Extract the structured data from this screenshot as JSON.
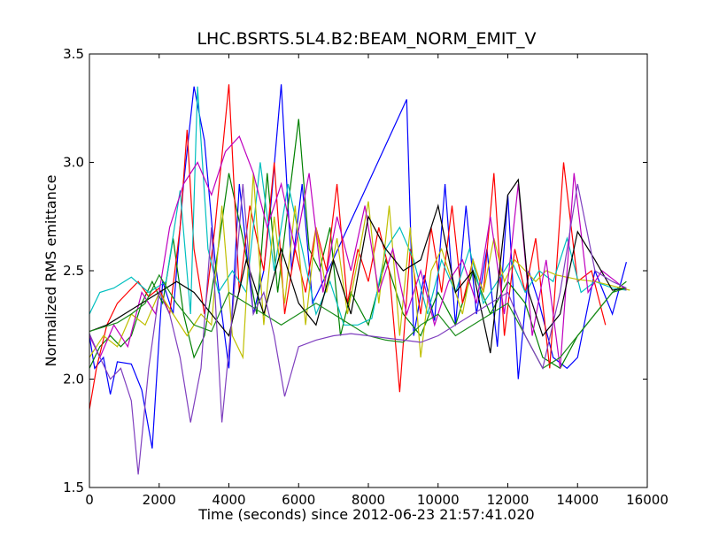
{
  "chart_data": {
    "type": "line",
    "title": "LHC.BSRTS.5L4.B2:BEAM_NORM_EMIT_V",
    "xlabel": "Time (seconds) since 2012-06-23 21:57:41.020",
    "ylabel": "Normalized RMS emittance",
    "xlim": [
      0,
      16000
    ],
    "ylim": [
      1.5,
      3.5
    ],
    "xticks": [
      0,
      2000,
      4000,
      6000,
      8000,
      10000,
      12000,
      14000,
      16000
    ],
    "yticks": [
      1.5,
      2.0,
      2.5,
      3.0,
      3.5
    ],
    "xtick_labels": [
      "0",
      "2000",
      "4000",
      "6000",
      "8000",
      "10000",
      "12000",
      "14000",
      "16000"
    ],
    "ytick_labels": [
      "1.5",
      "2.0",
      "2.5",
      "3.0",
      "3.5"
    ],
    "grid": false,
    "legend": "none",
    "series": [
      {
        "color": "#0000ff",
        "x": [
          0,
          150,
          400,
          600,
          800,
          1200,
          1500,
          1800,
          2100,
          2400,
          2700,
          3000,
          3300,
          3600,
          4000,
          4300,
          4700,
          5000,
          5200,
          5500,
          5800,
          6100,
          6400,
          6700,
          9100,
          9300,
          9600,
          9900,
          10200,
          10500,
          10800,
          11100,
          11400,
          11700,
          12000,
          12300,
          12600,
          12900,
          13300,
          13700,
          14000,
          14500,
          15000,
          15400
        ],
        "y": [
          2.2,
          2.05,
          2.1,
          1.93,
          2.08,
          2.07,
          1.95,
          1.68,
          2.45,
          2.3,
          2.9,
          3.35,
          3.1,
          2.55,
          2.05,
          2.9,
          2.3,
          2.5,
          2.8,
          3.36,
          2.5,
          2.9,
          2.35,
          2.45,
          3.29,
          2.2,
          2.48,
          2.27,
          2.9,
          2.25,
          2.8,
          2.3,
          2.6,
          2.15,
          2.85,
          2.0,
          2.5,
          2.35,
          2.1,
          2.05,
          2.1,
          2.5,
          2.3,
          2.54
        ]
      },
      {
        "color": "#008000",
        "x": [
          0,
          300,
          600,
          900,
          1200,
          1500,
          1800,
          2100,
          2400,
          2700,
          3000,
          3300,
          3600,
          4000,
          4400,
          4800,
          5100,
          5400,
          5700,
          6000,
          6300,
          6600,
          6900,
          7200,
          7500,
          8000,
          8500,
          9000,
          9500,
          10000,
          10500,
          11000,
          11500,
          12000,
          12500,
          13000,
          13500,
          14000,
          14500,
          15000,
          15400
        ],
        "y": [
          2.05,
          2.15,
          2.2,
          2.15,
          2.2,
          2.35,
          2.45,
          2.35,
          2.65,
          2.3,
          2.1,
          2.2,
          2.5,
          2.95,
          2.65,
          2.3,
          2.95,
          2.4,
          2.8,
          3.2,
          2.6,
          2.5,
          2.7,
          2.2,
          2.4,
          2.25,
          2.55,
          2.3,
          2.2,
          2.4,
          2.25,
          2.5,
          2.3,
          2.45,
          2.35,
          2.1,
          2.05,
          2.2,
          2.3,
          2.4,
          2.45
        ]
      },
      {
        "color": "#ff0000",
        "x": [
          0,
          200,
          500,
          800,
          1100,
          1400,
          1700,
          2000,
          2300,
          2600,
          2800,
          3000,
          3300,
          3600,
          4000,
          4300,
          4600,
          5000,
          5300,
          5600,
          5900,
          6200,
          6500,
          6800,
          7100,
          7400,
          7700,
          8000,
          8300,
          8600,
          8900,
          9200,
          9500,
          9800,
          10100,
          10400,
          10700,
          11000,
          11300,
          11600,
          11900,
          12200,
          12500,
          12800,
          13200,
          13600,
          14000,
          14400,
          14800
        ],
        "y": [
          1.86,
          2.05,
          2.25,
          2.35,
          2.4,
          2.45,
          2.38,
          2.42,
          2.3,
          2.7,
          3.15,
          2.6,
          2.3,
          2.7,
          3.36,
          2.4,
          2.8,
          2.5,
          3.0,
          2.3,
          2.6,
          2.4,
          2.7,
          2.5,
          2.9,
          2.35,
          2.6,
          2.45,
          2.7,
          2.5,
          1.94,
          2.6,
          2.3,
          2.7,
          2.4,
          2.8,
          2.35,
          2.55,
          2.4,
          2.95,
          2.2,
          2.6,
          2.4,
          2.65,
          2.05,
          3.0,
          2.45,
          2.5,
          2.25
        ]
      },
      {
        "color": "#00bfbf",
        "x": [
          0,
          300,
          700,
          1200,
          1700,
          2200,
          2600,
          2900,
          3100,
          3400,
          3700,
          4100,
          4500,
          4900,
          5300,
          5700,
          6100,
          6500,
          6900,
          7300,
          7700,
          8100,
          8500,
          8900,
          9300,
          9700,
          10100,
          10500,
          10900,
          11300,
          11700,
          12100,
          12500,
          12900,
          13300,
          13700,
          14100,
          14500,
          15000,
          15400
        ],
        "y": [
          2.3,
          2.4,
          2.42,
          2.47,
          2.4,
          2.45,
          2.87,
          2.3,
          3.35,
          2.6,
          2.4,
          2.5,
          2.4,
          3.0,
          2.5,
          2.9,
          2.6,
          2.3,
          2.45,
          2.25,
          2.25,
          2.28,
          2.6,
          2.7,
          2.55,
          2.3,
          2.55,
          2.4,
          2.6,
          2.35,
          2.45,
          2.55,
          2.4,
          2.5,
          2.45,
          2.65,
          2.4,
          2.45,
          2.42,
          2.41
        ]
      },
      {
        "color": "#bfbf00",
        "x": [
          0,
          400,
          800,
          1200,
          1600,
          2000,
          2400,
          2800,
          3200,
          3500,
          3800,
          4100,
          4400,
          4700,
          5000,
          5300,
          5600,
          5900,
          6200,
          6500,
          6800,
          7100,
          7400,
          7700,
          8000,
          8300,
          8600,
          8900,
          9200,
          9500,
          9800,
          10100,
          10400,
          10700,
          11000,
          11300,
          11600,
          11900,
          12200,
          12500,
          12800,
          13100,
          13400,
          13700,
          14000,
          14500,
          15000,
          15500
        ],
        "y": [
          2.1,
          2.2,
          2.15,
          2.3,
          2.25,
          2.4,
          2.3,
          2.2,
          2.3,
          2.25,
          2.8,
          2.2,
          2.1,
          2.95,
          2.25,
          2.75,
          2.35,
          2.8,
          2.25,
          2.7,
          2.4,
          2.65,
          2.3,
          2.55,
          2.82,
          2.35,
          2.8,
          2.2,
          2.7,
          2.1,
          2.5,
          2.6,
          2.45,
          2.3,
          2.55,
          2.4,
          2.65,
          2.45,
          2.55,
          2.5,
          2.45,
          2.5,
          2.48,
          2.47,
          2.46,
          2.45,
          2.43,
          2.41
        ]
      },
      {
        "color": "#bf00bf",
        "x": [
          0,
          300,
          700,
          1100,
          1500,
          1900,
          2300,
          2700,
          3100,
          3500,
          3900,
          4300,
          4700,
          5100,
          5500,
          5900,
          6300,
          6700,
          7100,
          7500,
          7900,
          8300,
          8700,
          9100,
          9500,
          9900,
          10300,
          10700,
          11100,
          11500,
          11900,
          12300,
          12700,
          13100,
          13500,
          13900,
          14300,
          14700,
          15100,
          15400
        ],
        "y": [
          2.2,
          2.1,
          2.25,
          2.15,
          2.4,
          2.3,
          2.7,
          2.9,
          3.0,
          2.85,
          3.05,
          3.12,
          2.95,
          2.7,
          2.9,
          2.6,
          2.95,
          2.4,
          2.75,
          2.5,
          2.8,
          2.4,
          2.6,
          2.3,
          2.5,
          2.25,
          2.45,
          2.55,
          2.35,
          2.75,
          2.3,
          2.9,
          2.2,
          2.55,
          2.05,
          2.95,
          2.4,
          2.5,
          2.45,
          2.41
        ]
      },
      {
        "color": "#000000",
        "x": [
          0,
          500,
          1000,
          1500,
          2000,
          2500,
          3000,
          3500,
          4000,
          4500,
          5000,
          5500,
          6000,
          6500,
          7000,
          7500,
          8000,
          8500,
          9000,
          9500,
          10000,
          10500,
          11000,
          11500,
          12000,
          12300,
          12600,
          13000,
          13500,
          14000,
          14500,
          15000,
          15400
        ],
        "y": [
          2.22,
          2.25,
          2.3,
          2.35,
          2.4,
          2.45,
          2.4,
          2.3,
          2.2,
          2.55,
          2.3,
          2.6,
          2.35,
          2.25,
          2.55,
          2.3,
          2.75,
          2.6,
          2.5,
          2.55,
          2.8,
          2.4,
          2.5,
          2.12,
          2.85,
          2.92,
          2.4,
          2.2,
          2.3,
          2.68,
          2.55,
          2.41,
          2.42
        ]
      },
      {
        "color": "#1a8c1a",
        "x": [
          0,
          400,
          800,
          1200,
          1600,
          2000,
          2500,
          3000,
          3500,
          4000,
          4500,
          5000,
          5500,
          6000,
          6500,
          7000,
          7500,
          8000,
          8500,
          9000,
          9500,
          10000,
          10500,
          11000,
          11500,
          12000,
          12500,
          13000,
          13500,
          14000,
          14500,
          15000,
          15400
        ],
        "y": [
          2.22,
          2.24,
          2.26,
          2.3,
          2.35,
          2.48,
          2.35,
          2.25,
          2.22,
          2.4,
          2.35,
          2.3,
          2.25,
          2.3,
          2.35,
          2.3,
          2.25,
          2.2,
          2.18,
          2.17,
          2.25,
          2.3,
          2.2,
          2.25,
          2.3,
          2.35,
          2.2,
          2.05,
          2.1,
          2.2,
          2.3,
          2.4,
          2.42
        ]
      },
      {
        "color": "#7f3fbf",
        "x": [
          0,
          300,
          600,
          900,
          1200,
          1400,
          1700,
          2000,
          2300,
          2600,
          2900,
          3200,
          3500,
          3800,
          4100,
          4400,
          4700,
          5000,
          5300,
          5600,
          6000,
          6500,
          7000,
          7500,
          8000,
          8500,
          9000,
          9500,
          10000,
          10500,
          11000,
          11500,
          12000,
          12500,
          13000,
          13500,
          14000,
          14500,
          15000,
          15400
        ],
        "y": [
          2.21,
          2.1,
          2.0,
          2.05,
          1.9,
          1.56,
          2.05,
          2.4,
          2.3,
          2.1,
          1.8,
          2.05,
          2.7,
          1.8,
          2.3,
          2.9,
          2.3,
          2.4,
          2.2,
          1.92,
          2.15,
          2.18,
          2.2,
          2.21,
          2.2,
          2.19,
          2.18,
          2.17,
          2.2,
          2.25,
          2.3,
          2.35,
          2.4,
          2.2,
          2.05,
          2.4,
          2.9,
          2.5,
          2.45,
          2.42
        ]
      }
    ]
  }
}
